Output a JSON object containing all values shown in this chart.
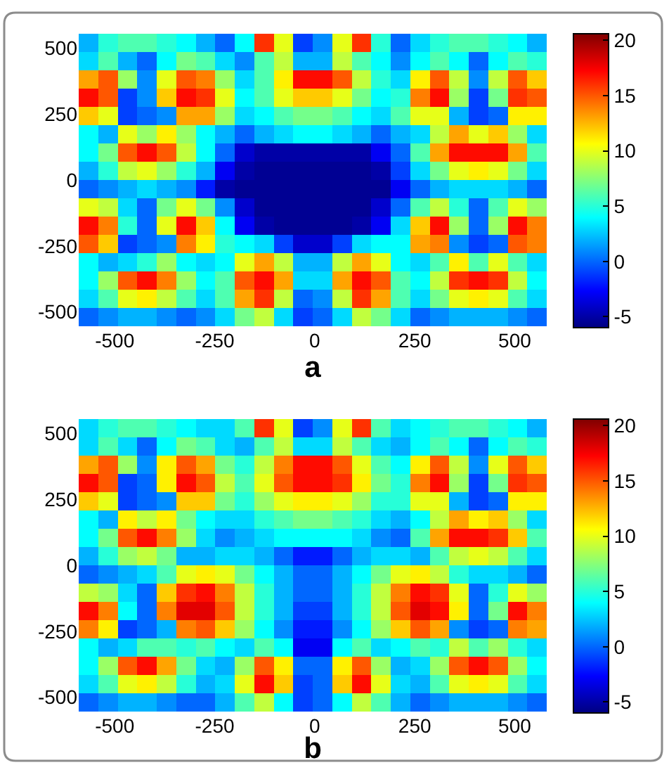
{
  "chart_data": [
    {
      "type": "heatmap",
      "xlabel": "a",
      "xlim": [
        -590,
        580
      ],
      "ylim": [
        -555,
        555
      ],
      "xticks": [
        -500,
        -250,
        0,
        250,
        500
      ],
      "yticks": [
        -500,
        -250,
        0,
        250,
        500
      ],
      "clim": [
        -6,
        20.6
      ],
      "cticks": [
        -5,
        0,
        5,
        10,
        15,
        20
      ],
      "cells": [
        [
          2,
          5,
          6,
          6,
          5,
          4,
          2,
          0,
          4,
          16,
          10,
          -1,
          1,
          10,
          16,
          5,
          0,
          3,
          5,
          6,
          6,
          5,
          4,
          2
        ],
        [
          3,
          6,
          2,
          0,
          4,
          7,
          6,
          3,
          1,
          6,
          9,
          2,
          2,
          9,
          6,
          4,
          1,
          4,
          6,
          4,
          0,
          4,
          6,
          5
        ],
        [
          13,
          15,
          8,
          1,
          10,
          15,
          14,
          8,
          3,
          6,
          11,
          17,
          17,
          15,
          9,
          5,
          3,
          11,
          15,
          9,
          1,
          9,
          15,
          12
        ],
        [
          17,
          15,
          -1,
          1,
          12,
          17,
          16,
          10,
          4,
          6,
          10,
          12,
          12,
          10,
          7,
          4,
          5,
          14,
          17,
          8,
          -1,
          7,
          16,
          15
        ],
        [
          12,
          10,
          -1,
          0,
          1,
          13,
          13,
          8,
          3,
          4,
          6,
          7,
          7,
          6,
          4,
          3,
          6,
          10,
          10,
          2,
          -1,
          0,
          11,
          11
        ],
        [
          4,
          2,
          10,
          8,
          11,
          8,
          4,
          2,
          0,
          2,
          3,
          4,
          4,
          3,
          2,
          0,
          2,
          3,
          9,
          13,
          10,
          12,
          8,
          3
        ],
        [
          4,
          7,
          15,
          17,
          15,
          9,
          4,
          0,
          -4,
          -5,
          -5,
          -5,
          -5,
          -5,
          -5,
          -3,
          0,
          6,
          13,
          17,
          17,
          17,
          13,
          6
        ],
        [
          2,
          5,
          9,
          10,
          8,
          5,
          2,
          -3,
          -5,
          -5.5,
          -5.5,
          -5.5,
          -5.5,
          -5.5,
          -5.5,
          -5,
          -1,
          3,
          7,
          10,
          11,
          10,
          7,
          3
        ],
        [
          0,
          1,
          2,
          3,
          2,
          1,
          -2,
          -5,
          -5.5,
          -5.5,
          -5.5,
          -5.5,
          -5.5,
          -5.5,
          -5.5,
          -5.5,
          -3,
          0,
          2,
          3,
          3,
          3,
          2,
          0
        ],
        [
          10,
          9,
          3,
          0,
          7,
          10,
          7,
          1,
          -4,
          -5.5,
          -5.5,
          -5.5,
          -5.5,
          -5.5,
          -5.5,
          -4,
          0,
          6,
          9,
          5,
          0,
          6,
          10,
          8
        ],
        [
          17,
          14,
          5,
          0,
          10,
          17,
          12,
          4,
          -3,
          -5,
          -5.5,
          -5.5,
          -5.5,
          -5.5,
          -5,
          -3,
          3,
          12,
          17,
          8,
          0,
          8,
          17,
          14
        ],
        [
          15,
          12,
          -1,
          0,
          1,
          14,
          11,
          5,
          4,
          3,
          -1,
          -4,
          -4,
          -1,
          3,
          4,
          4,
          13,
          14,
          1,
          -1,
          0,
          15,
          14
        ],
        [
          4,
          2,
          3,
          5,
          8,
          4,
          3,
          4,
          10,
          13,
          9,
          2,
          2,
          9,
          13,
          10,
          4,
          3,
          6,
          11,
          6,
          10,
          6,
          3
        ],
        [
          4,
          8,
          15,
          17,
          14,
          8,
          4,
          6,
          15,
          17,
          13,
          3,
          3,
          13,
          17,
          15,
          6,
          4,
          9,
          16,
          17,
          16,
          9,
          4
        ],
        [
          3,
          6,
          10,
          11,
          9,
          6,
          3,
          6,
          13,
          16,
          9,
          0,
          1,
          9,
          16,
          13,
          6,
          3,
          7,
          10,
          11,
          10,
          6,
          3
        ],
        [
          0,
          1,
          2,
          2,
          1,
          0,
          1,
          3,
          7,
          9,
          3,
          -1,
          0,
          3,
          9,
          7,
          3,
          0,
          1,
          2,
          2,
          2,
          1,
          0
        ]
      ]
    },
    {
      "type": "heatmap",
      "xlabel": "b",
      "xlim": [
        -590,
        580
      ],
      "ylim": [
        -555,
        555
      ],
      "xticks": [
        -500,
        -250,
        0,
        250,
        500
      ],
      "yticks": [
        -500,
        -250,
        0,
        250,
        500
      ],
      "clim": [
        -6,
        20.6
      ],
      "cticks": [
        -5,
        0,
        5,
        10,
        15,
        20
      ],
      "cells": [
        [
          3,
          5,
          6,
          6,
          5,
          4,
          3,
          3,
          6,
          16,
          10,
          -1,
          1,
          10,
          16,
          6,
          3,
          4,
          5,
          6,
          6,
          5,
          4,
          2
        ],
        [
          3,
          6,
          3,
          0,
          4,
          7,
          6,
          3,
          2,
          6,
          9,
          3,
          3,
          9,
          6,
          3,
          2,
          4,
          6,
          4,
          0,
          4,
          6,
          5
        ],
        [
          13,
          15,
          8,
          1,
          11,
          15,
          13,
          7,
          5,
          9,
          14,
          17,
          17,
          15,
          10,
          6,
          4,
          11,
          15,
          9,
          1,
          10,
          15,
          12
        ],
        [
          17,
          15,
          -1,
          0,
          11,
          17,
          15,
          9,
          6,
          10,
          15,
          17,
          17,
          16,
          11,
          7,
          5,
          14,
          17,
          8,
          -1,
          7,
          16,
          15
        ],
        [
          12,
          10,
          -1,
          0,
          1,
          12,
          12,
          7,
          5,
          8,
          10,
          11,
          11,
          10,
          8,
          5,
          5,
          10,
          10,
          2,
          -1,
          0,
          11,
          11
        ],
        [
          4,
          2,
          11,
          9,
          11,
          7,
          4,
          3,
          3,
          5,
          6,
          7,
          7,
          6,
          5,
          3,
          2,
          4,
          9,
          13,
          11,
          12,
          8,
          3
        ],
        [
          4,
          7,
          15,
          17,
          14,
          8,
          3,
          1,
          2,
          3,
          4,
          4,
          4,
          4,
          3,
          1,
          0,
          6,
          13,
          17,
          17,
          16,
          12,
          6
        ],
        [
          2,
          5,
          8,
          9,
          7,
          2,
          2,
          3,
          3,
          2,
          0,
          -2,
          -2,
          0,
          2,
          3,
          3,
          2,
          6,
          9,
          10,
          9,
          6,
          3
        ],
        [
          0,
          1,
          2,
          3,
          6,
          10,
          11,
          10,
          7,
          4,
          2,
          0,
          0,
          2,
          4,
          7,
          10,
          11,
          9,
          5,
          3,
          3,
          2,
          0
        ],
        [
          9,
          8,
          3,
          0,
          12,
          16,
          17,
          14,
          9,
          5,
          2,
          0,
          0,
          2,
          5,
          9,
          14,
          17,
          16,
          10,
          0,
          5,
          10,
          8
        ],
        [
          17,
          14,
          4,
          0,
          14,
          18,
          18,
          15,
          9,
          5,
          2,
          -1,
          -1,
          2,
          5,
          9,
          15,
          18,
          17,
          11,
          0,
          7,
          17,
          14
        ],
        [
          14,
          11,
          -1,
          0,
          2,
          14,
          15,
          12,
          8,
          4,
          1,
          -2,
          -2,
          1,
          4,
          8,
          12,
          15,
          13,
          1,
          -1,
          0,
          14,
          13
        ],
        [
          4,
          2,
          3,
          6,
          6,
          5,
          6,
          4,
          3,
          6,
          4,
          -3,
          -3,
          4,
          6,
          3,
          4,
          6,
          5,
          9,
          6,
          8,
          5,
          3
        ],
        [
          4,
          8,
          15,
          17,
          13,
          7,
          3,
          2,
          8,
          15,
          11,
          0,
          0,
          11,
          15,
          8,
          2,
          3,
          8,
          15,
          17,
          15,
          8,
          4
        ],
        [
          3,
          6,
          10,
          11,
          9,
          5,
          2,
          3,
          10,
          17,
          12,
          -1,
          0,
          12,
          17,
          10,
          3,
          2,
          6,
          10,
          11,
          10,
          6,
          3
        ],
        [
          0,
          1,
          2,
          2,
          1,
          0,
          0,
          2,
          6,
          9,
          4,
          -1,
          0,
          4,
          9,
          6,
          2,
          0,
          1,
          2,
          2,
          2,
          1,
          0
        ]
      ]
    }
  ]
}
